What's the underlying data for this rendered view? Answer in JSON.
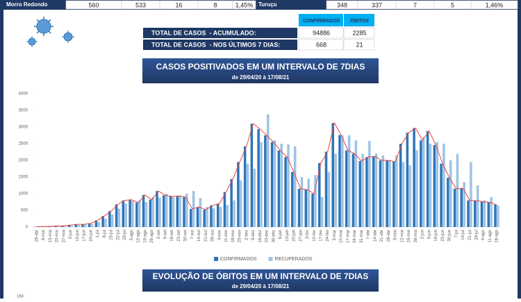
{
  "top_rows": [
    {
      "city": "Morro Redondo",
      "values": [
        560,
        533,
        16,
        8,
        "1,45%"
      ]
    },
    {
      "city": "Turuçu",
      "values": [
        348,
        337,
        7,
        5,
        "1,46%"
      ]
    }
  ],
  "summary": {
    "headers": [
      "CONFIRMADOS",
      "ÓBITOS"
    ],
    "rows": [
      {
        "label": "TOTAL DE CASOS  - ACUMULADO:",
        "values": [
          94886,
          2285
        ]
      },
      {
        "label": "TOTAL DE CASOS  - NOS ÚLTIMOS 7 DIAS:",
        "values": [
          668,
          21
        ]
      }
    ]
  },
  "chart_data": [
    {
      "type": "bar",
      "title": "CASOS POSITIVADOS EM UM INTERVALO DE 7DIAS",
      "subtitle": "de 29/04/20 à 17/08/21",
      "categories": [
        "29-abr",
        "6-mai",
        "13-mai",
        "20-mai",
        "27-mai",
        "3-jun",
        "10-jun",
        "17-jun",
        "24-jun",
        "1-jul",
        "8-jul",
        "15-jul",
        "22-jul",
        "29-jul",
        "5-ago",
        "12-ago",
        "19-ago",
        "26-ago",
        "2-set",
        "9-set",
        "16-set",
        "23-set",
        "30-set",
        "7-out",
        "14-out",
        "21-out",
        "28-out",
        "4-nov",
        "11-nov",
        "18-nov",
        "25-nov",
        "2-dez",
        "9-dez",
        "16-dez",
        "23-dez",
        "30-dez",
        "6-jan",
        "13-jan",
        "20-jan",
        "27-jan",
        "3-fev",
        "10-fev",
        "17-fev",
        "24-fev",
        "3-mar",
        "10-mar",
        "17-mar",
        "24-mar",
        "31-mar",
        "7-abr",
        "14-abr",
        "21-abr",
        "28-abr",
        "5-mai",
        "12-mai",
        "19-mai",
        "26-mai",
        "2-jun",
        "9-jun",
        "16-jun",
        "23-jun",
        "30-jun",
        "7-jul",
        "14-jul",
        "21-jul",
        "28-jul",
        "4-ago",
        "11-ago",
        "18-ago"
      ],
      "series": [
        {
          "name": "CONFIRMADOS",
          "color": "#2e75b6",
          "line_color": "#e8453c",
          "values": [
            10,
            15,
            20,
            30,
            40,
            60,
            80,
            80,
            110,
            200,
            330,
            480,
            680,
            800,
            820,
            730,
            960,
            820,
            1080,
            950,
            920,
            930,
            900,
            540,
            600,
            520,
            650,
            700,
            1050,
            1440,
            1950,
            2420,
            3100,
            2940,
            2750,
            2550,
            2300,
            2100,
            1650,
            1150,
            1120,
            1000,
            1920,
            2260,
            3120,
            2760,
            2300,
            2200,
            1980,
            2100,
            2120,
            2000,
            2000,
            1960,
            2500,
            2830,
            2970,
            2600,
            2880,
            2460,
            1900,
            1480,
            1150,
            1160,
            800,
            790,
            760,
            740,
            668
          ]
        },
        {
          "name": "RECUPERADOS",
          "color": "#9dc3e6",
          "values": [
            0,
            5,
            10,
            20,
            30,
            40,
            60,
            70,
            90,
            150,
            250,
            380,
            550,
            700,
            780,
            800,
            750,
            900,
            880,
            1000,
            900,
            950,
            1000,
            1080,
            870,
            600,
            560,
            600,
            660,
            800,
            1400,
            1900,
            1750,
            2550,
            3380,
            2600,
            2500,
            2480,
            2420,
            1500,
            1450,
            1560,
            900,
            1650,
            2200,
            2750,
            2750,
            2600,
            2200,
            2580,
            2200,
            2150,
            2000,
            2150,
            1950,
            1850,
            2300,
            2700,
            2500,
            2550,
            2500,
            2000,
            2200,
            1350,
            1950,
            1250,
            800,
            900,
            650
          ]
        }
      ],
      "ylim": [
        0,
        4000
      ],
      "yticks": [
        0,
        500,
        1000,
        1500,
        2000,
        2500,
        3000,
        3500,
        4000
      ],
      "grid": false,
      "legend": "bottom"
    },
    {
      "type": "line",
      "title": "EVOLUÇÃO DE ÓBITOS EM UM INTERVALO DE 7DIAS",
      "subtitle": "de 29/04/20 à 17/08/21",
      "yticks": [
        160
      ]
    }
  ]
}
